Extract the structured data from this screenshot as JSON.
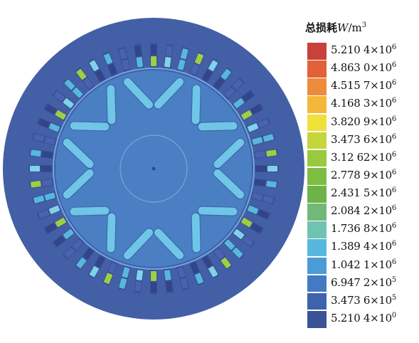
{
  "legend": {
    "title_cjk": "总损耗",
    "title_var": "W",
    "title_unit": "/m",
    "title_exp": "3",
    "entries": [
      {
        "mantissa": "5.210 4",
        "exp": "6",
        "color": "#c8413a"
      },
      {
        "mantissa": "4.863 0",
        "exp": "6",
        "color": "#e2603a"
      },
      {
        "mantissa": "4.515 7",
        "exp": "6",
        "color": "#ec8b3c"
      },
      {
        "mantissa": "4.168 3",
        "exp": "6",
        "color": "#f2b73b"
      },
      {
        "mantissa": "3.820 9",
        "exp": "6",
        "color": "#efe03a"
      },
      {
        "mantissa": "3.473 6",
        "exp": "6",
        "color": "#c4d63c"
      },
      {
        "mantissa": "3.12 62",
        "exp": "6",
        "color": "#98c93f"
      },
      {
        "mantissa": "2.778 9",
        "exp": "6",
        "color": "#7dbd42"
      },
      {
        "mantissa": "2.431 5",
        "exp": "6",
        "color": "#6cb348"
      },
      {
        "mantissa": "2.084 2",
        "exp": "6",
        "color": "#72b878"
      },
      {
        "mantissa": "1.736 8",
        "exp": "6",
        "color": "#6ec3b1"
      },
      {
        "mantissa": "1.389 4",
        "exp": "6",
        "color": "#57b7dd"
      },
      {
        "mantissa": "1.042 1",
        "exp": "6",
        "color": "#4b9bd6"
      },
      {
        "mantissa": "6.947 2",
        "exp": "5",
        "color": "#4479c3"
      },
      {
        "mantissa": "3.473 6",
        "exp": "5",
        "color": "#3f62ad"
      },
      {
        "mantissa": "5.210 4",
        "exp": "0",
        "color": "#3b5296"
      }
    ],
    "times": "×10"
  },
  "colors": {
    "stator": "#4360a6",
    "rotor": "#4a7fc4",
    "outline": "#6fa8df",
    "slot_dark": "#33458a",
    "slot_mid": "#4a63b0",
    "slot_blue": "#57b7dd",
    "slot_green": "#9ccf42",
    "slot_cyan": "#7fd3e8",
    "magnet": "#6fc6e6",
    "magnet_edge": "#3e66a8"
  }
}
